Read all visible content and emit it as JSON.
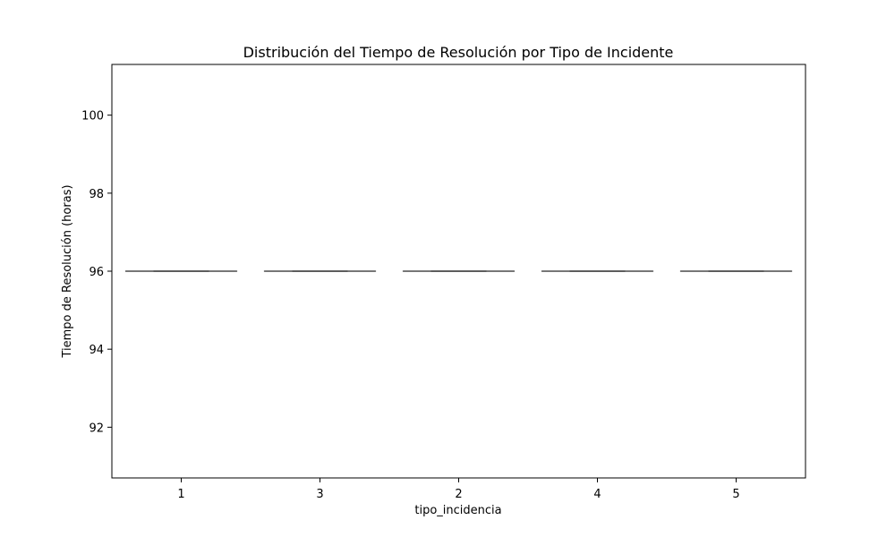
{
  "chart_data": {
    "type": "boxplot",
    "title": "Distribución del Tiempo de Resolución por Tipo de Incidente",
    "xlabel": "tipo_incidencia",
    "ylabel": "Tiempo de Resolución (horas)",
    "categories": [
      "1",
      "3",
      "2",
      "4",
      "5"
    ],
    "series": [
      {
        "boxes": [
          {
            "category": "1",
            "min": 96,
            "q1": 96,
            "median": 96,
            "q3": 96,
            "max": 96
          },
          {
            "category": "3",
            "min": 96,
            "q1": 96,
            "median": 96,
            "q3": 96,
            "max": 96
          },
          {
            "category": "2",
            "min": 96,
            "q1": 96,
            "median": 96,
            "q3": 96,
            "max": 96
          },
          {
            "category": "4",
            "min": 96,
            "q1": 96,
            "median": 96,
            "q3": 96,
            "max": 96
          },
          {
            "category": "5",
            "min": 96,
            "q1": 96,
            "median": 96,
            "q3": 96,
            "max": 96
          }
        ]
      }
    ],
    "ylim": [
      90.7,
      101.3
    ],
    "yticks": [
      92,
      94,
      96,
      98,
      100
    ],
    "grid": false,
    "legend": "none",
    "colors": {
      "axis": "#000000",
      "box_line": "#3f3f3f",
      "box_fill": "#4c72b0"
    }
  }
}
